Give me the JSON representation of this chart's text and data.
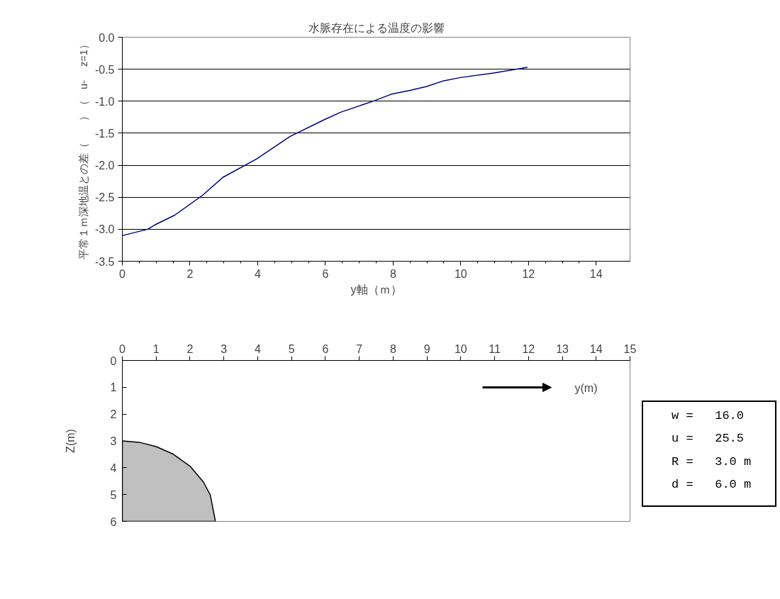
{
  "chart_data": [
    {
      "type": "line",
      "title": "水脈存在による温度の影響",
      "xlabel": "y軸（ｍ）",
      "ylabel": "平常１ｍ深地温との差（　　）（　u-　 z=1）",
      "x": [
        0,
        0.75,
        0.97,
        1.55,
        2.37,
        2.97,
        3.97,
        4.96,
        5.96,
        6.46,
        7.46,
        7.95,
        8.5,
        8.99,
        9.5,
        9.99,
        10.97,
        11.97
      ],
      "series": [
        {
          "color": "#000080",
          "values": [
            -3.1,
            -3.0,
            -2.93,
            -2.78,
            -2.47,
            -2.19,
            -1.9,
            -1.55,
            -1.29,
            -1.17,
            -0.99,
            -0.89,
            -0.83,
            -0.77,
            -0.68,
            -0.63,
            -0.56,
            -0.47
          ]
        }
      ],
      "xlim": [
        0,
        15
      ],
      "xticks": [
        0,
        2,
        4,
        6,
        8,
        10,
        12,
        14
      ],
      "ylim": [
        -3.5,
        0
      ],
      "yticks": [
        {
          "value": 0,
          "label": "0.0"
        },
        {
          "value": -0.5,
          "label": "-0.5"
        },
        {
          "value": -1,
          "label": "-1.0"
        },
        {
          "value": -1.5,
          "label": "-1.5"
        },
        {
          "value": -2,
          "label": "-2.0"
        },
        {
          "value": -2.5,
          "label": "-2.5"
        },
        {
          "value": -3,
          "label": "-3.0"
        },
        {
          "value": -3.5,
          "label": "-3.5"
        }
      ],
      "grid": "y",
      "marker": "none",
      "line_style": "solid"
    },
    {
      "type": "area",
      "xlabel": "y(m)",
      "ylabel": "Z(m)",
      "x": [
        0,
        0,
        0.5,
        1,
        1.5,
        2,
        2.4,
        2.6,
        2.75
      ],
      "series": [
        {
          "color": "#c0c0c0",
          "values": [
            6,
            3,
            3.05,
            3.21,
            3.49,
            3.94,
            4.54,
            5.02,
            6
          ]
        }
      ],
      "xlim": [
        0,
        15
      ],
      "xticks": [
        0,
        1,
        2,
        3,
        4,
        5,
        6,
        7,
        8,
        9,
        10,
        11,
        12,
        13,
        14,
        15
      ],
      "ylim": [
        6,
        0
      ],
      "yticks": [
        0,
        1,
        2,
        3,
        4,
        5,
        6
      ],
      "grid": false,
      "annotations": [
        "w =   16.0",
        "u =   25.5",
        "R =   3.0 m",
        "d =   6.0 m"
      ]
    }
  ]
}
